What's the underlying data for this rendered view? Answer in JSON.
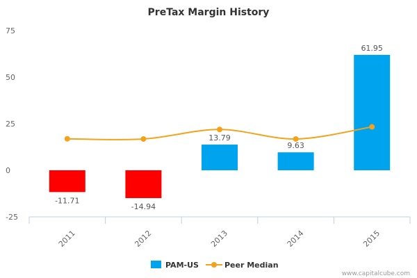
{
  "chart_data": {
    "type": "bar",
    "title": "PreTax Margin History",
    "categories": [
      "2011",
      "2012",
      "2013",
      "2014",
      "2015"
    ],
    "ylim": [
      -25,
      75
    ],
    "yticks": [
      75,
      50,
      25,
      0,
      -25
    ],
    "series": [
      {
        "name": "PAM-US",
        "type": "bar",
        "values": [
          -11.71,
          -14.94,
          13.79,
          9.63,
          61.95
        ],
        "data_labels": [
          "-11.71",
          "-14.94",
          "13.79",
          "9.63",
          "61.95"
        ]
      },
      {
        "name": "Peer Median",
        "type": "line",
        "values": [
          16.9,
          16.8,
          21.9,
          16.8,
          23.3
        ]
      }
    ],
    "legend_position": "bottom-center",
    "grid": false
  },
  "colors": {
    "positive_bar": "#00a3ee",
    "negative_bar": "#ff0000",
    "peer_line": "#f5a21b",
    "axis": "#c0d0e0"
  },
  "credit": "www.capitalcube.com"
}
